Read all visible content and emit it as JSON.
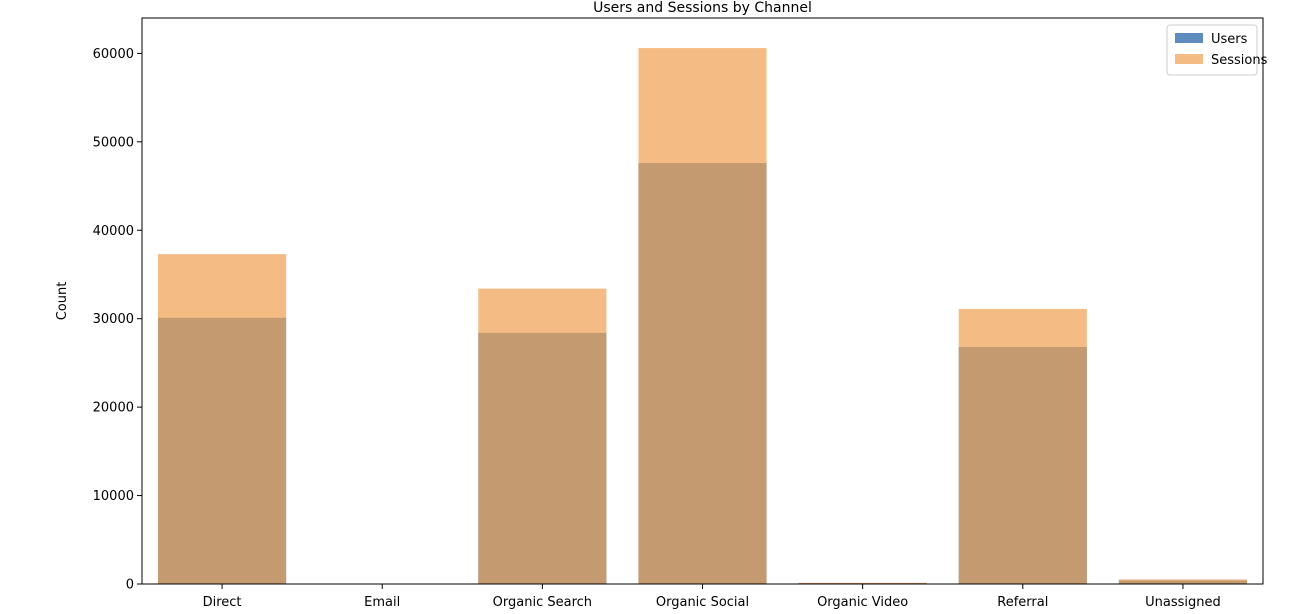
{
  "chart_data": {
    "type": "bar",
    "title": "Users and Sessions by Channel",
    "xlabel": "",
    "ylabel": "Count",
    "ylim": [
      0,
      64000
    ],
    "yticks": [
      0,
      10000,
      20000,
      30000,
      40000,
      50000,
      60000
    ],
    "categories": [
      "Direct",
      "Email",
      "Organic Search",
      "Organic Social",
      "Organic Video",
      "Referral",
      "Unassigned"
    ],
    "series": [
      {
        "name": "Users",
        "color": "#4c80b8",
        "opacity": 0.9,
        "values": [
          30100,
          5,
          28400,
          47600,
          110,
          26800,
          400
        ]
      },
      {
        "name": "Sessions",
        "color": "#f0a050",
        "opacity": 0.7,
        "values": [
          37300,
          8,
          33400,
          60600,
          140,
          31100,
          520
        ]
      }
    ],
    "overlay": true,
    "grid": false,
    "legend": "top-right"
  }
}
